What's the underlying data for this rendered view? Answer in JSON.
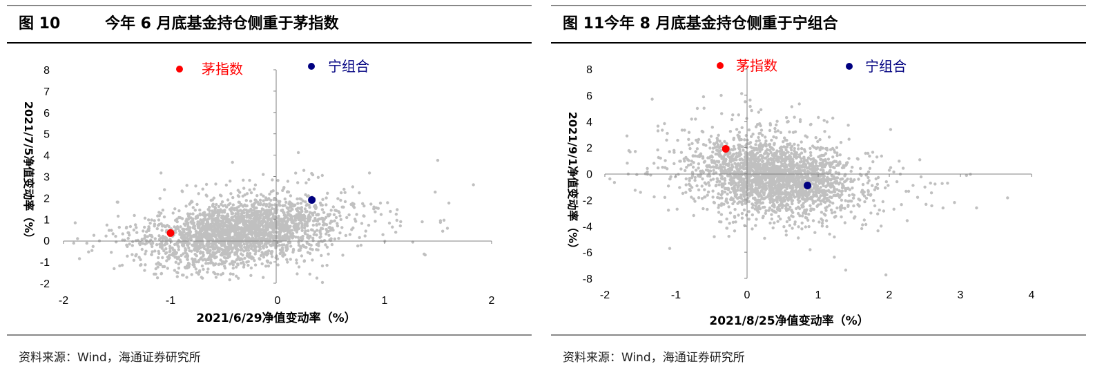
{
  "charts": [
    {
      "figure_label": "图 10",
      "title_text": "今年 6 月底基金持仓侧重于茅指数",
      "source": "资料来源：Wind，海通证券研究所",
      "chart_data": {
        "type": "scatter",
        "xlabel": "2021/6/29净值变动率（%）",
        "ylabel": "2021/7/5净值变动率（%）",
        "xlim": [
          -2,
          2
        ],
        "ylim": [
          -2,
          8
        ],
        "xticks": [
          "-2",
          "-1",
          "0",
          "1",
          "2"
        ],
        "yticks": [
          "-2",
          "-1",
          "0",
          "1",
          "2",
          "3",
          "4",
          "5",
          "6",
          "7",
          "8"
        ],
        "grid": false,
        "legend_position": "top",
        "series": [
          {
            "name": "茅指数",
            "color": "#ff0000",
            "points": [
              [
                -1.0,
                0.35
              ]
            ]
          },
          {
            "name": "宁组合",
            "color": "#000080",
            "points": [
              [
                0.32,
                1.9
              ]
            ]
          }
        ],
        "background_points": {
          "color": "#c0c0c0",
          "count": 2400,
          "x_center": -0.35,
          "y_center": 0.4
        }
      }
    },
    {
      "figure_label": "图 11",
      "title_text": "今年 8 月底基金持仓侧重于宁组合",
      "source": "资料来源：Wind，海通证券研究所",
      "chart_data": {
        "type": "scatter",
        "xlabel": "2021/8/25净值变动率（%）",
        "ylabel": "2021/9/1净值变动率（%）",
        "xlim": [
          -2,
          4
        ],
        "ylim": [
          -8,
          8
        ],
        "xticks": [
          "-2",
          "-1",
          "0",
          "1",
          "2",
          "3",
          "4"
        ],
        "yticks": [
          "-8",
          "-6",
          "-4",
          "-2",
          "0",
          "2",
          "4",
          "6",
          "8"
        ],
        "grid": false,
        "legend_position": "top",
        "series": [
          {
            "name": "茅指数",
            "color": "#ff0000",
            "points": [
              [
                -0.3,
                1.9
              ]
            ]
          },
          {
            "name": "宁组合",
            "color": "#000080",
            "points": [
              [
                0.85,
                -0.9
              ]
            ]
          }
        ],
        "background_points": {
          "color": "#c0c0c0",
          "count": 2400,
          "x_center": 0.4,
          "y_center": -0.3
        }
      }
    }
  ]
}
